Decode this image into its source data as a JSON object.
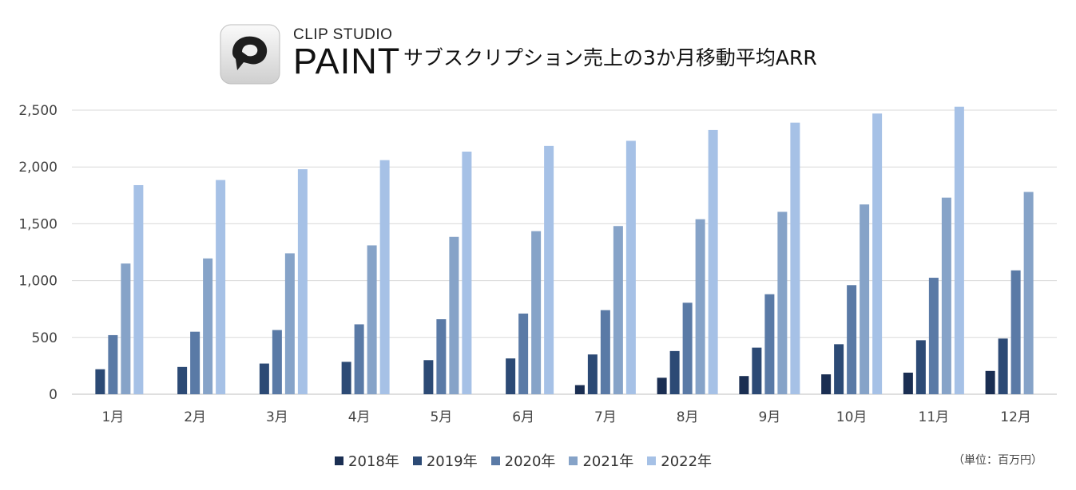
{
  "header": {
    "brand_top": "CLIP STUDIO",
    "brand_main": "PAINT",
    "title": "サブスクリプション売上の3か月移動平均ARR"
  },
  "unit_note": "（単位：百万円）",
  "colors": {
    "2018": "#1a2e52",
    "2019": "#2c4a75",
    "2020": "#5a7aa6",
    "2021": "#86a3c8",
    "2022": "#a6c1e6",
    "grid": "#d9d9d9"
  },
  "chart_data": {
    "type": "bar",
    "title": "サブスクリプション売上の3か月移動平均ARR",
    "xlabel": "",
    "ylabel": "",
    "ylim": [
      0,
      2500
    ],
    "yticks": [
      0,
      500,
      1000,
      1500,
      2000,
      2500
    ],
    "ytick_labels": [
      "0",
      "500",
      "1,000",
      "1,500",
      "2,000",
      "2,500"
    ],
    "grid": true,
    "legend_position": "bottom",
    "categories": [
      "1月",
      "2月",
      "3月",
      "4月",
      "5月",
      "6月",
      "7月",
      "8月",
      "9月",
      "10月",
      "11月",
      "12月"
    ],
    "series": [
      {
        "name": "2018年",
        "key": "2018",
        "values": [
          null,
          null,
          null,
          null,
          null,
          null,
          80,
          145,
          160,
          175,
          190,
          205
        ]
      },
      {
        "name": "2019年",
        "key": "2019",
        "values": [
          220,
          240,
          270,
          285,
          300,
          315,
          350,
          380,
          410,
          440,
          475,
          490
        ]
      },
      {
        "name": "2020年",
        "key": "2020",
        "values": [
          520,
          550,
          565,
          615,
          660,
          710,
          740,
          805,
          880,
          960,
          1025,
          1090
        ]
      },
      {
        "name": "2021年",
        "key": "2021",
        "values": [
          1150,
          1195,
          1240,
          1310,
          1385,
          1435,
          1480,
          1540,
          1605,
          1670,
          1730,
          1780
        ]
      },
      {
        "name": "2022年",
        "key": "2022",
        "values": [
          1840,
          1885,
          1980,
          2060,
          2135,
          2185,
          2230,
          2325,
          2390,
          2470,
          2530,
          null
        ]
      }
    ]
  }
}
